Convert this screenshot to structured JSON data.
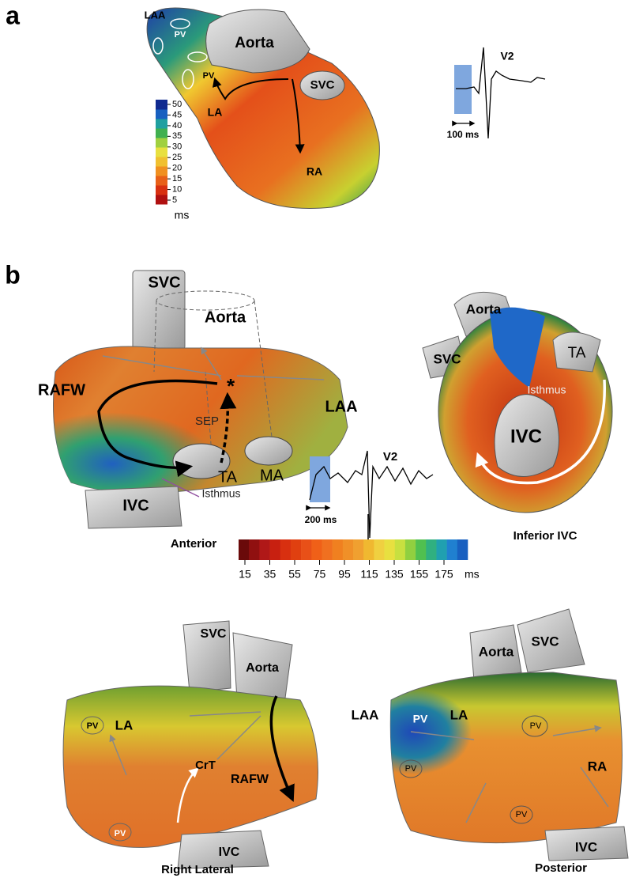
{
  "panel_a": {
    "label": "a",
    "annotations": [
      "LAA",
      "PV",
      "PV",
      "Aorta",
      "SVC",
      "LA",
      "RA"
    ],
    "colorbar": {
      "ticks": [
        5,
        10,
        15,
        20,
        25,
        30,
        35,
        40,
        45,
        50
      ],
      "unit": "ms"
    },
    "ecg": {
      "lead": "V2",
      "scale": "100 ms"
    }
  },
  "panel_b": {
    "label": "b",
    "views": [
      {
        "title": "Anterior",
        "annotations": [
          "SVC",
          "Aorta",
          "RAFW",
          "*",
          "SEP",
          "LAA",
          "TA",
          "MA",
          "IVC",
          "Isthmus"
        ]
      },
      {
        "title": "Inferior IVC",
        "annotations": [
          "Aorta",
          "SVC",
          "TA",
          "Isthmus",
          "IVC"
        ]
      },
      {
        "title": "Right Lateral",
        "annotations": [
          "SVC",
          "Aorta",
          "PV",
          "LA",
          "CrT",
          "RAFW",
          "PV",
          "IVC"
        ]
      },
      {
        "title": "Posterior",
        "annotations": [
          "SVC",
          "Aorta",
          "LAA",
          "PV",
          "LA",
          "PV",
          "RA",
          "PV",
          "PV",
          "IVC"
        ]
      }
    ],
    "colorbar": {
      "ticks": [
        15,
        35,
        55,
        75,
        95,
        115,
        135,
        155,
        175
      ],
      "unit": "ms"
    },
    "ecg": {
      "lead": "V2",
      "scale": "200 ms"
    }
  }
}
